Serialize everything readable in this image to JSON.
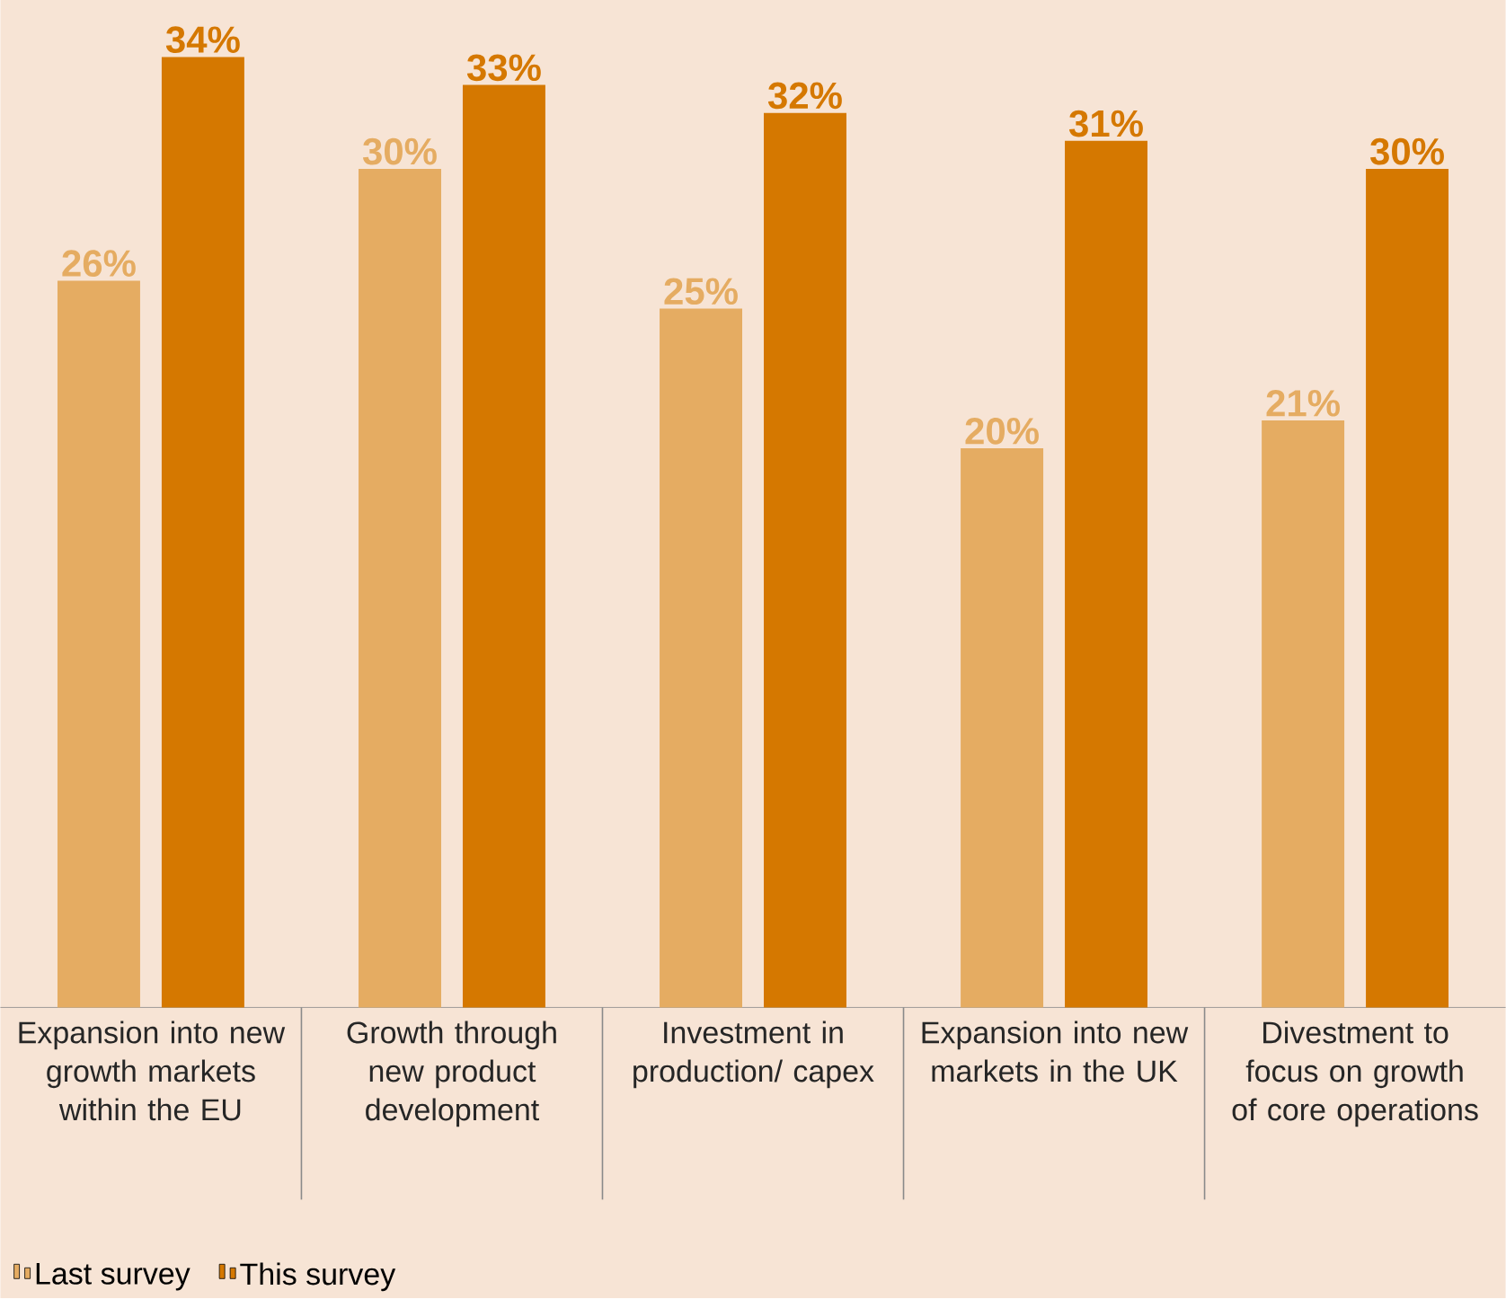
{
  "chart_data": {
    "type": "bar",
    "categories": [
      "Expansion into new growth markets within the EU",
      "Growth through new product development",
      "Investment in production/ capex",
      "Expansion into new markets in the UK",
      "Divestment to focus on growth of core operations"
    ],
    "series": [
      {
        "name": "Last survey",
        "color": "#e5ac62",
        "values": [
          26,
          30,
          25,
          20,
          21
        ],
        "value_labels": [
          "26%",
          "30%",
          "25%",
          "20%",
          "21%"
        ]
      },
      {
        "name": "This survey",
        "color": "#d57800",
        "values": [
          34,
          33,
          32,
          31,
          30
        ],
        "value_labels": [
          "34%",
          "33%",
          "32%",
          "31%",
          "30%"
        ]
      }
    ],
    "legend": "bottom left"
  }
}
